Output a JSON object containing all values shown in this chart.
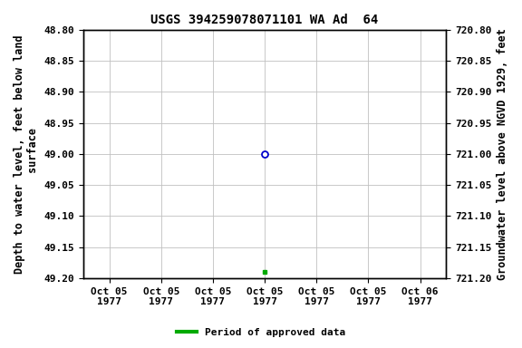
{
  "title": "USGS 394259078071101 WA Ad  64",
  "ylabel_left": "Depth to water level, feet below land\n surface",
  "ylabel_right": "Groundwater level above NGVD 1929, feet",
  "ylim_left": [
    48.8,
    49.2
  ],
  "ylim_right": [
    721.2,
    720.8
  ],
  "yticks_left": [
    48.8,
    48.85,
    48.9,
    48.95,
    49.0,
    49.05,
    49.1,
    49.15,
    49.2
  ],
  "yticks_right": [
    721.2,
    721.15,
    721.1,
    721.05,
    721.0,
    720.95,
    720.9,
    720.85,
    720.8
  ],
  "xtick_labels": [
    "Oct 05\n1977",
    "Oct 05\n1977",
    "Oct 05\n1977",
    "Oct 05\n1977",
    "Oct 05\n1977",
    "Oct 05\n1977",
    "Oct 06\n1977"
  ],
  "data_x": [
    3.0
  ],
  "data_y": [
    49.0
  ],
  "dot_x": [
    3.0
  ],
  "dot_y": [
    49.19
  ],
  "open_circle_color": "#0000cc",
  "dot_color": "#00aa00",
  "background_color": "#ffffff",
  "grid_color": "#c0c0c0",
  "legend_label": "Period of approved data",
  "legend_color": "#00aa00",
  "title_fontsize": 10,
  "tick_fontsize": 8,
  "label_fontsize": 8.5
}
